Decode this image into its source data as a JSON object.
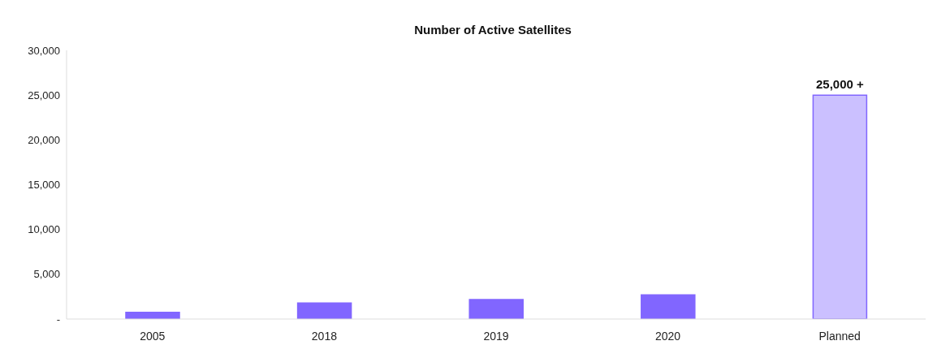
{
  "chart_data": {
    "type": "bar",
    "title": "Number of Active Satellites",
    "categories": [
      "2005",
      "2018",
      "2019",
      "2020",
      "Planned"
    ],
    "series": [
      {
        "color": "#8166ff",
        "colors": [
          "#8166ff",
          "#8166ff",
          "#8166ff",
          "#8166ff",
          "#cbc0ff"
        ],
        "values": [
          750,
          1780,
          2180,
          2700,
          25000
        ],
        "value_labels": [
          null,
          null,
          null,
          null,
          "25,000 +"
        ]
      }
    ],
    "ylim": [
      0,
      30000
    ],
    "yticks": [
      {
        "value": 0,
        "label": "-"
      },
      {
        "value": 5000,
        "label": "5,000"
      },
      {
        "value": 10000,
        "label": "10,000"
      },
      {
        "value": 15000,
        "label": "15,000"
      },
      {
        "value": 20000,
        "label": "20,000"
      },
      {
        "value": 25000,
        "label": "25,000"
      },
      {
        "value": 30000,
        "label": "30,000"
      }
    ],
    "grid": false,
    "legend": false
  }
}
